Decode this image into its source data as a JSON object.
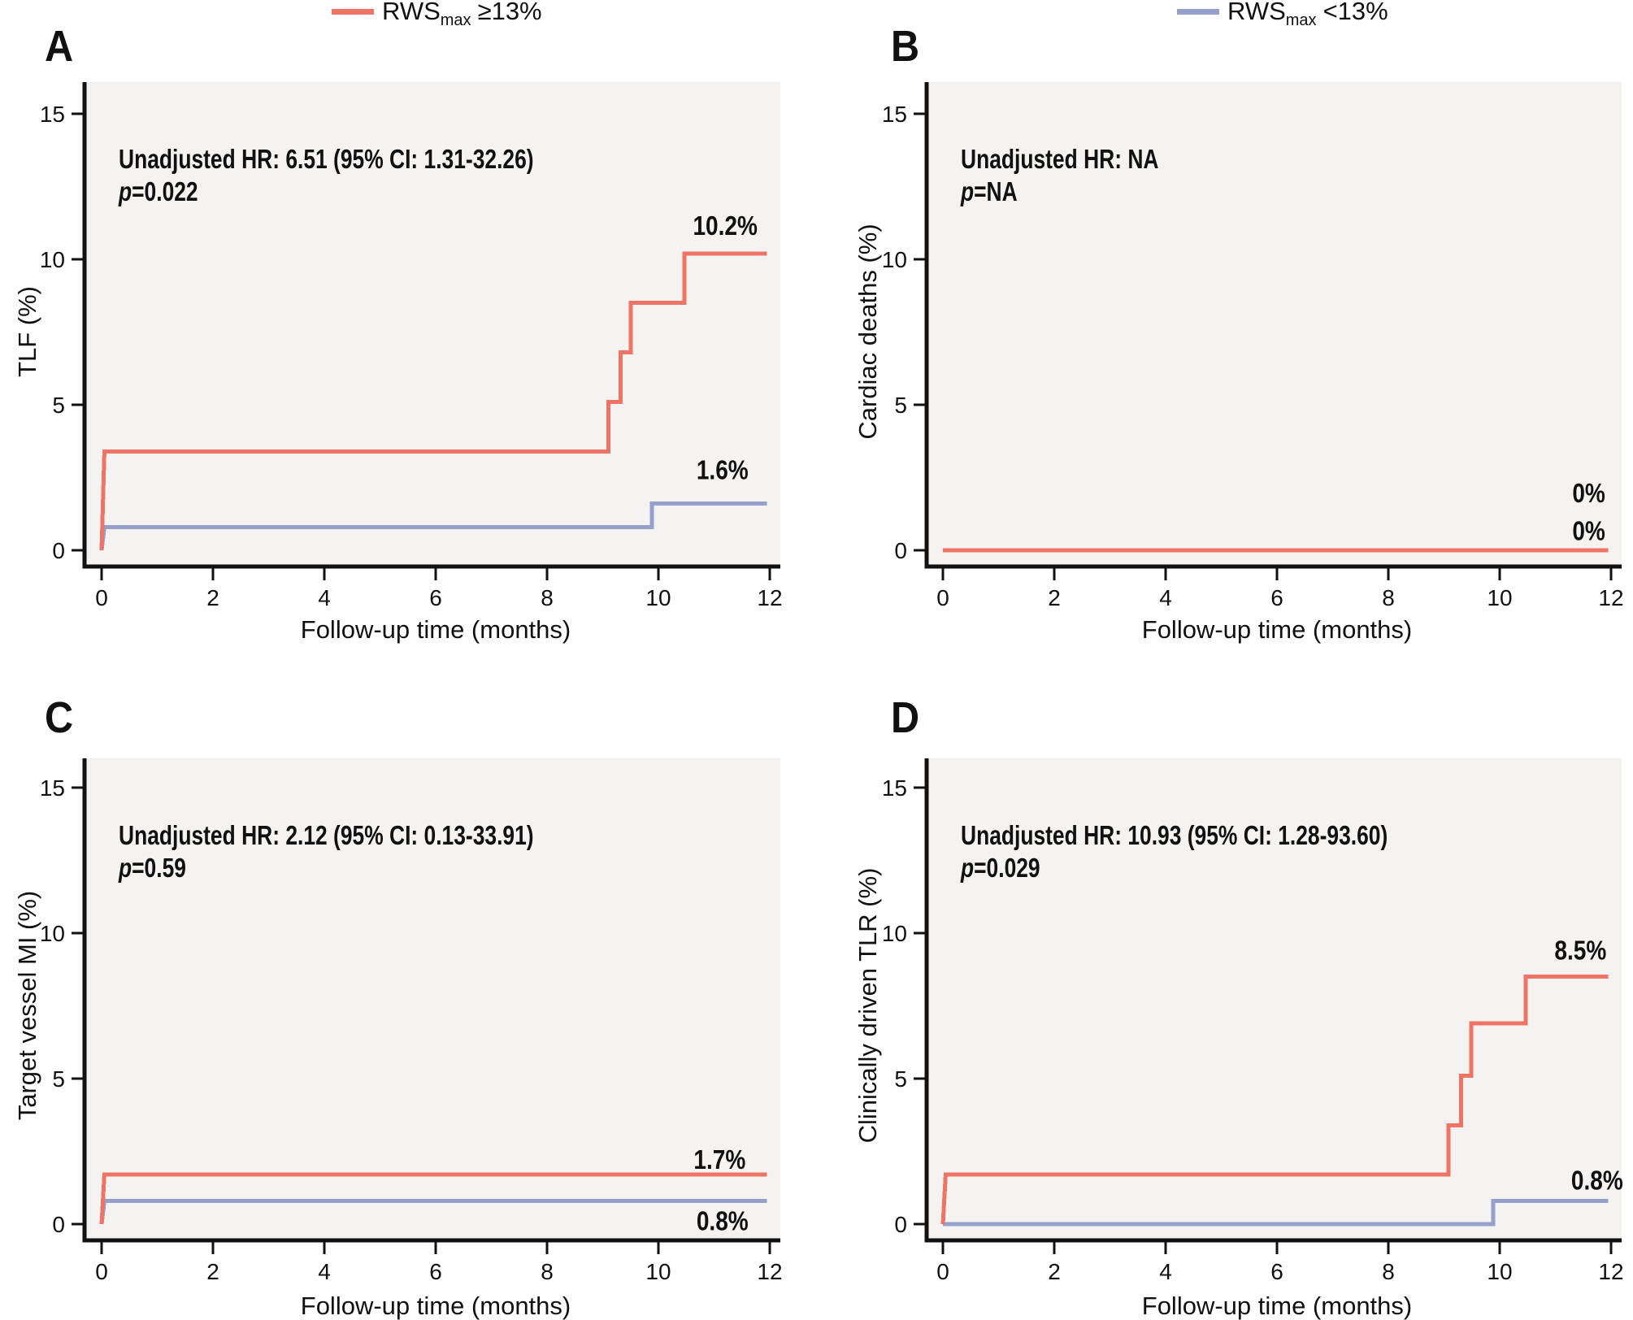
{
  "figure": {
    "plot_background": "#f4f3f1",
    "colors": {
      "group_high": "#ee7565",
      "group_low": "#95a0cb",
      "axis": "#111111",
      "text": "#111111"
    },
    "legend": [
      {
        "rws": "RWS",
        "sub": "max",
        "cmp": "≥13%",
        "color_key": "group_high"
      },
      {
        "rws": "RWS",
        "sub": "max",
        "cmp": "<13%",
        "color_key": "group_low"
      }
    ],
    "x_axis": {
      "label": "Follow-up time (months)",
      "ticks": [
        0,
        2,
        4,
        6,
        8,
        10,
        12
      ],
      "range": [
        0,
        12
      ]
    },
    "y_axis": {
      "ticks": [
        0,
        5,
        10,
        15
      ],
      "range": [
        0,
        15
      ]
    }
  },
  "chart_data": [
    {
      "type": "line",
      "panel": "A",
      "ylabel": "TLF (%)",
      "xlabel": "Follow-up time (months)",
      "ylim": [
        0,
        15
      ],
      "xlim": [
        0,
        12
      ],
      "annotation": {
        "hr": "Unadjusted HR: 6.51 (95% CI: 1.31-32.26)",
        "p_label": "p",
        "p_value": "=0.022"
      },
      "series": [
        {
          "name": "RWSmax ≥13%",
          "color_key": "group_high",
          "points": [
            [
              0,
              0
            ],
            [
              0.05,
              3.4
            ],
            [
              9.1,
              3.4
            ],
            [
              9.1,
              5.1
            ],
            [
              9.32,
              5.1
            ],
            [
              9.32,
              6.8
            ],
            [
              9.5,
              6.8
            ],
            [
              9.5,
              8.5
            ],
            [
              10.47,
              8.5
            ],
            [
              10.47,
              10.2
            ],
            [
              11.95,
              10.2
            ]
          ],
          "end_label": {
            "text": "10.2%",
            "x": 11.2,
            "y": 11.15
          }
        },
        {
          "name": "RWSmax <13%",
          "color_key": "group_low",
          "points": [
            [
              0,
              0
            ],
            [
              0.05,
              0.8
            ],
            [
              9.88,
              0.8
            ],
            [
              9.88,
              1.6
            ],
            [
              11.95,
              1.6
            ]
          ],
          "end_label": {
            "text": "1.6%",
            "x": 11.15,
            "y": 2.75
          }
        }
      ]
    },
    {
      "type": "line",
      "panel": "B",
      "ylabel": "Cardiac deaths (%)",
      "xlabel": "Follow-up time (months)",
      "ylim": [
        0,
        15
      ],
      "xlim": [
        0,
        12
      ],
      "annotation": {
        "hr": "Unadjusted HR: NA",
        "p_label": "p",
        "p_value": "=NA"
      },
      "series": [
        {
          "name": "RWSmax ≥13%",
          "color_key": "group_high",
          "points": [
            [
              0,
              0
            ],
            [
              11.95,
              0
            ]
          ],
          "end_label": {
            "text": "0%",
            "x": 11.6,
            "y": 0.65
          }
        },
        {
          "name": "RWSmax <13%",
          "color_key": "group_low",
          "points": [
            [
              0,
              0
            ],
            [
              11.95,
              0
            ]
          ],
          "end_label": {
            "text": "0%",
            "x": 11.6,
            "y": 1.95
          }
        }
      ]
    },
    {
      "type": "line",
      "panel": "C",
      "ylabel": "Target vessel MI (%)",
      "xlabel": "Follow-up time (months)",
      "ylim": [
        0,
        15
      ],
      "xlim": [
        0,
        12
      ],
      "annotation": {
        "hr": "Unadjusted HR: 2.12 (95% CI: 0.13-33.91)",
        "p_label": "p",
        "p_value": "=0.59"
      },
      "series": [
        {
          "name": "RWSmax ≥13%",
          "color_key": "group_high",
          "points": [
            [
              0,
              0
            ],
            [
              0.05,
              1.7
            ],
            [
              11.95,
              1.7
            ]
          ],
          "end_label": {
            "text": "1.7%",
            "x": 11.1,
            "y": 2.2
          }
        },
        {
          "name": "RWSmax <13%",
          "color_key": "group_low",
          "points": [
            [
              0,
              0
            ],
            [
              0.05,
              0.8
            ],
            [
              11.95,
              0.8
            ]
          ],
          "end_label": {
            "text": "0.8%",
            "x": 11.15,
            "y": 0.1
          }
        }
      ]
    },
    {
      "type": "line",
      "panel": "D",
      "ylabel": "Clinically driven TLR (%)",
      "xlabel": "Follow-up time (months)",
      "ylim": [
        0,
        15
      ],
      "xlim": [
        0,
        12
      ],
      "annotation": {
        "hr": "Unadjusted HR: 10.93 (95% CI: 1.28-93.60)",
        "p_label": "p",
        "p_value": "=0.029"
      },
      "series": [
        {
          "name": "RWSmax ≥13%",
          "color_key": "group_high",
          "points": [
            [
              0,
              0
            ],
            [
              0.05,
              1.7
            ],
            [
              9.08,
              1.7
            ],
            [
              9.08,
              3.4
            ],
            [
              9.31,
              3.4
            ],
            [
              9.31,
              5.1
            ],
            [
              9.49,
              5.1
            ],
            [
              9.49,
              6.9
            ],
            [
              10.47,
              6.9
            ],
            [
              10.47,
              8.5
            ],
            [
              11.95,
              8.5
            ]
          ],
          "end_label": {
            "text": "8.5%",
            "x": 11.45,
            "y": 9.4
          }
        },
        {
          "name": "RWSmax <13%",
          "color_key": "group_low",
          "points": [
            [
              0,
              0
            ],
            [
              9.88,
              0
            ],
            [
              9.88,
              0.8
            ],
            [
              11.95,
              0.8
            ]
          ],
          "end_label": {
            "text": "0.8%",
            "x": 11.75,
            "y": 1.5
          }
        }
      ]
    }
  ]
}
